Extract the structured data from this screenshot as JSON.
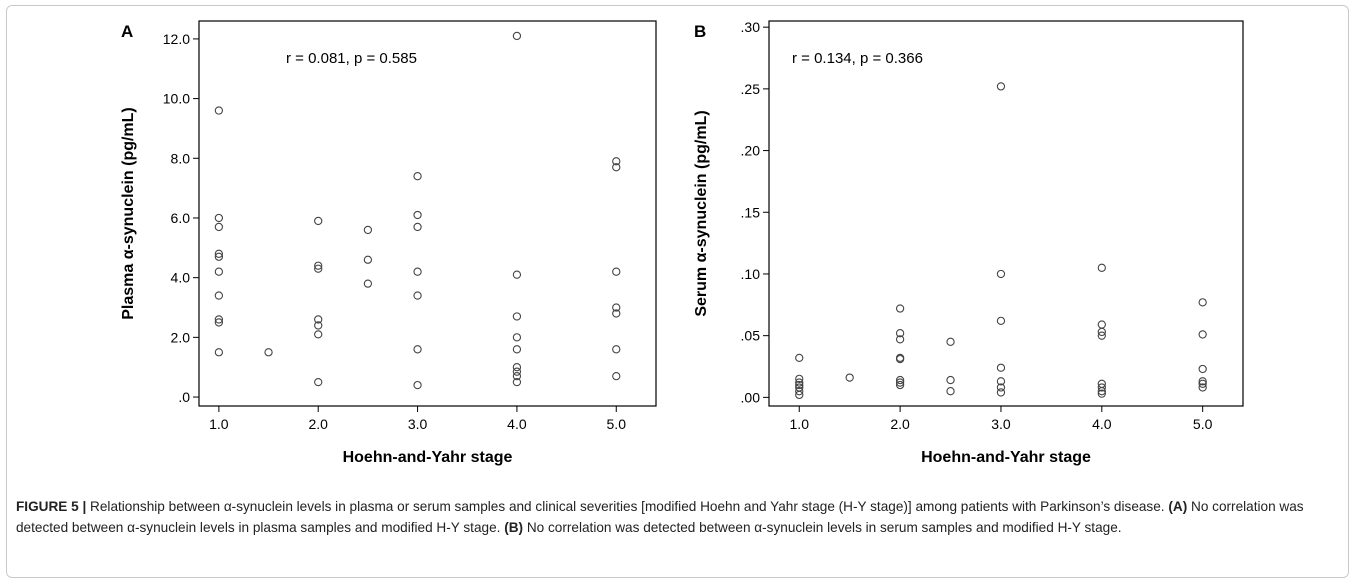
{
  "chart_data": [
    {
      "type": "scatter",
      "panel_label": "A",
      "annotation": "r = 0.081, p = 0.585",
      "xlabel": "Hoehn-and-Yahr stage",
      "ylabel": "Plasma α-synuclein (pg/mL)",
      "xlim": [
        0.8,
        5.4
      ],
      "ylim": [
        -0.3,
        12.6
      ],
      "xticks": [
        1,
        2,
        3,
        4,
        5
      ],
      "xtick_labels": [
        "1.0",
        "2.0",
        "3.0",
        "4.0",
        "5.0"
      ],
      "yticks": [
        0,
        2,
        4,
        6,
        8,
        10,
        12
      ],
      "ytick_labels": [
        ".0",
        "2.0",
        "4.0",
        "6.0",
        "8.0",
        "10.0",
        "12.0"
      ],
      "points": [
        [
          1.0,
          9.6
        ],
        [
          1.0,
          6.0
        ],
        [
          1.0,
          5.7
        ],
        [
          1.0,
          4.8
        ],
        [
          1.0,
          4.7
        ],
        [
          1.0,
          4.2
        ],
        [
          1.0,
          3.4
        ],
        [
          1.0,
          2.6
        ],
        [
          1.0,
          2.5
        ],
        [
          1.0,
          1.5
        ],
        [
          1.5,
          1.5
        ],
        [
          2.0,
          5.9
        ],
        [
          2.0,
          4.4
        ],
        [
          2.0,
          4.3
        ],
        [
          2.0,
          2.6
        ],
        [
          2.0,
          2.4
        ],
        [
          2.0,
          2.1
        ],
        [
          2.0,
          0.5
        ],
        [
          2.5,
          5.6
        ],
        [
          2.5,
          4.6
        ],
        [
          2.5,
          3.8
        ],
        [
          3.0,
          7.4
        ],
        [
          3.0,
          6.1
        ],
        [
          3.0,
          5.7
        ],
        [
          3.0,
          4.2
        ],
        [
          3.0,
          3.4
        ],
        [
          3.0,
          1.6
        ],
        [
          3.0,
          0.4
        ],
        [
          4.0,
          12.1
        ],
        [
          4.0,
          4.1
        ],
        [
          4.0,
          2.7
        ],
        [
          4.0,
          2.0
        ],
        [
          4.0,
          1.6
        ],
        [
          4.0,
          1.0
        ],
        [
          4.0,
          0.85
        ],
        [
          4.0,
          0.7
        ],
        [
          4.0,
          0.5
        ],
        [
          5.0,
          7.9
        ],
        [
          5.0,
          7.7
        ],
        [
          5.0,
          4.2
        ],
        [
          5.0,
          3.0
        ],
        [
          5.0,
          2.8
        ],
        [
          5.0,
          1.6
        ],
        [
          5.0,
          0.7
        ]
      ]
    },
    {
      "type": "scatter",
      "panel_label": "B",
      "annotation": "r = 0.134, p = 0.366",
      "xlabel": "Hoehn-and-Yahr stage",
      "ylabel": "Serum α-synuclein (pg/mL)",
      "xlim": [
        0.7,
        5.4
      ],
      "ylim": [
        -0.007,
        0.305
      ],
      "xticks": [
        1,
        2,
        3,
        4,
        5
      ],
      "xtick_labels": [
        "1.0",
        "2.0",
        "3.0",
        "4.0",
        "5.0"
      ],
      "yticks": [
        0,
        0.05,
        0.1,
        0.15,
        0.2,
        0.25,
        0.3
      ],
      "ytick_labels": [
        ".00",
        ".05",
        ".10",
        ".15",
        ".20",
        ".25",
        ".30"
      ],
      "points": [
        [
          1.0,
          0.032
        ],
        [
          1.0,
          0.015
        ],
        [
          1.0,
          0.012
        ],
        [
          1.0,
          0.01
        ],
        [
          1.0,
          0.008
        ],
        [
          1.0,
          0.005
        ],
        [
          1.0,
          0.002
        ],
        [
          1.5,
          0.016
        ],
        [
          2.0,
          0.072
        ],
        [
          2.0,
          0.052
        ],
        [
          2.0,
          0.047
        ],
        [
          2.0,
          0.032
        ],
        [
          2.0,
          0.031
        ],
        [
          2.0,
          0.014
        ],
        [
          2.0,
          0.012
        ],
        [
          2.0,
          0.01
        ],
        [
          2.5,
          0.045
        ],
        [
          2.5,
          0.014
        ],
        [
          2.5,
          0.005
        ],
        [
          3.0,
          0.252
        ],
        [
          3.0,
          0.1
        ],
        [
          3.0,
          0.062
        ],
        [
          3.0,
          0.024
        ],
        [
          3.0,
          0.013
        ],
        [
          3.0,
          0.008
        ],
        [
          3.0,
          0.004
        ],
        [
          4.0,
          0.105
        ],
        [
          4.0,
          0.059
        ],
        [
          4.0,
          0.053
        ],
        [
          4.0,
          0.05
        ],
        [
          4.0,
          0.011
        ],
        [
          4.0,
          0.008
        ],
        [
          4.0,
          0.005
        ],
        [
          4.0,
          0.003
        ],
        [
          5.0,
          0.077
        ],
        [
          5.0,
          0.051
        ],
        [
          5.0,
          0.023
        ],
        [
          5.0,
          0.013
        ],
        [
          5.0,
          0.011
        ],
        [
          5.0,
          0.008
        ]
      ]
    }
  ],
  "caption": {
    "figure_label": "FIGURE 5 |",
    "text_1": " Relationship between α-synuclein levels in plasma or serum samples and clinical severities [modified Hoehn and Yahr stage (H-Y stage)] among patients with Parkinson’s disease. ",
    "label_a": "(A)",
    "text_2": " No correlation was detected between α-synuclein levels in plasma samples and modified H-Y stage. ",
    "label_b": "(B)",
    "text_3": " No correlation was detected between α-synuclein levels in serum samples and modified H-Y stage."
  }
}
